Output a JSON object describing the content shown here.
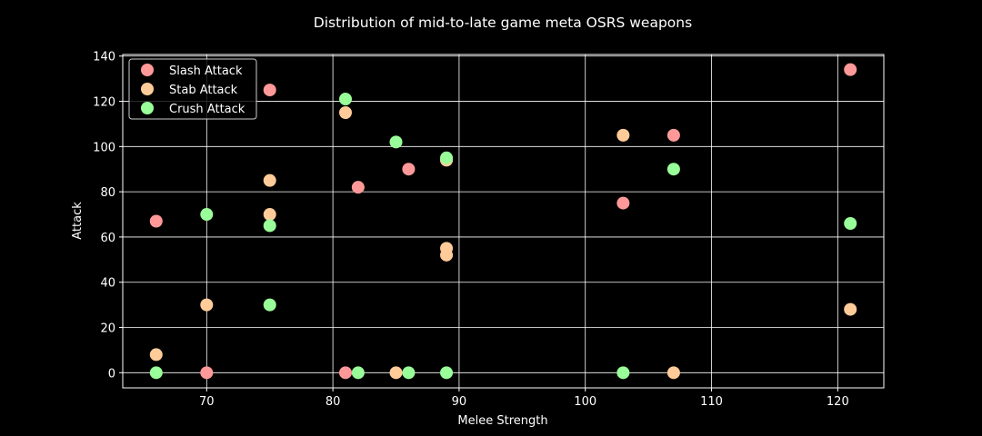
{
  "chart_data": {
    "type": "scatter",
    "title": "Distribution of mid-to-late game meta OSRS weapons",
    "xlabel": "Melee Strength",
    "ylabel": "Attack",
    "xlim": [
      63.35,
      123.65
    ],
    "ylim": [
      -6.7,
      140.7
    ],
    "xticks": [
      70,
      80,
      90,
      100,
      110,
      120
    ],
    "yticks": [
      0,
      20,
      40,
      60,
      80,
      100,
      120,
      140
    ],
    "grid": true,
    "legend_position": "top-left",
    "series": [
      {
        "name": "Slash Attack",
        "color": "#ff9999",
        "points": [
          [
            66,
            67
          ],
          [
            70,
            0
          ],
          [
            75,
            125
          ],
          [
            81,
            0
          ],
          [
            82,
            82
          ],
          [
            86,
            90
          ],
          [
            89,
            94
          ],
          [
            103,
            75
          ],
          [
            107,
            105
          ],
          [
            121,
            134
          ]
        ]
      },
      {
        "name": "Stab Attack",
        "color": "#ffcc99",
        "points": [
          [
            66,
            8
          ],
          [
            70,
            30
          ],
          [
            75,
            85
          ],
          [
            75,
            70
          ],
          [
            81,
            115
          ],
          [
            85,
            0
          ],
          [
            89,
            55
          ],
          [
            89,
            52
          ],
          [
            89,
            94
          ],
          [
            103,
            105
          ],
          [
            107,
            0
          ],
          [
            121,
            28
          ]
        ]
      },
      {
        "name": "Crush Attack",
        "color": "#99ff99",
        "points": [
          [
            66,
            0
          ],
          [
            70,
            70
          ],
          [
            75,
            65
          ],
          [
            75,
            30
          ],
          [
            81,
            121
          ],
          [
            82,
            0
          ],
          [
            85,
            102
          ],
          [
            86,
            0
          ],
          [
            89,
            0
          ],
          [
            89,
            95
          ],
          [
            103,
            0
          ],
          [
            107,
            90
          ],
          [
            121,
            66
          ]
        ]
      }
    ]
  }
}
